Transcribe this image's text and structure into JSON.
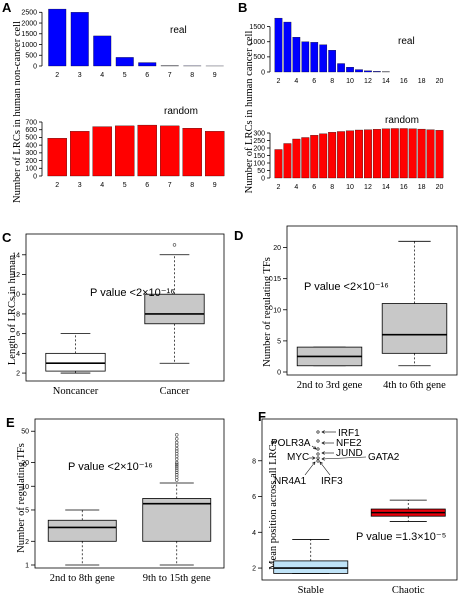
{
  "chart_data": [
    {
      "panel": "A",
      "type": "bar",
      "ylabel": "Number of LRCs in human non-cancer cell",
      "subplots": [
        {
          "label": "real",
          "color": "#0000ff",
          "categories": [
            "2",
            "3",
            "4",
            "5",
            "6",
            "7",
            "8",
            "9"
          ],
          "values": [
            2650,
            2500,
            1400,
            400,
            160,
            10,
            5,
            2
          ],
          "ylim": [
            0,
            2700
          ],
          "yticks": [
            "0",
            "500",
            "1000",
            "1500",
            "2000",
            "2500"
          ]
        },
        {
          "label": "random",
          "color": "#ff0000",
          "categories": [
            "2",
            "3",
            "4",
            "5",
            "6",
            "7",
            "8",
            "9"
          ],
          "values": [
            490,
            580,
            640,
            650,
            660,
            650,
            620,
            580
          ],
          "ylim": [
            0,
            700
          ],
          "yticks": [
            "0",
            "100",
            "200",
            "300",
            "400",
            "500",
            "600",
            "700"
          ]
        }
      ]
    },
    {
      "panel": "B",
      "type": "bar",
      "ylabel": "Number of LRCs in human cancer cell",
      "subplots": [
        {
          "label": "real",
          "color": "#0000ff",
          "categories": [
            "2",
            "3",
            "4",
            "5",
            "6",
            "7",
            "8",
            "9",
            "10",
            "11",
            "12",
            "13",
            "14",
            "15",
            "16",
            "17",
            "18",
            "19",
            "20"
          ],
          "xticks": [
            "2",
            "4",
            "6",
            "8",
            "10",
            "12",
            "14",
            "16",
            "18",
            "20"
          ],
          "values": [
            1780,
            1650,
            1150,
            1000,
            980,
            900,
            720,
            280,
            160,
            80,
            40,
            20,
            10,
            0,
            0,
            0,
            0,
            0,
            0
          ],
          "ylim": [
            0,
            1850
          ],
          "yticks": [
            "0",
            "500",
            "1000",
            "1500"
          ]
        },
        {
          "label": "random",
          "color": "#ff0000",
          "categories": [
            "2",
            "3",
            "4",
            "5",
            "6",
            "7",
            "8",
            "9",
            "10",
            "11",
            "12",
            "13",
            "14",
            "15",
            "16",
            "17",
            "18",
            "19",
            "20"
          ],
          "xticks": [
            "2",
            "4",
            "6",
            "8",
            "10",
            "12",
            "14",
            "16",
            "18",
            "20"
          ],
          "values": [
            190,
            230,
            260,
            270,
            285,
            295,
            305,
            310,
            315,
            320,
            322,
            325,
            328,
            330,
            330,
            328,
            326,
            322,
            318
          ],
          "ylim": [
            0,
            340
          ],
          "yticks": [
            "0",
            "50",
            "100",
            "150",
            "200",
            "250",
            "300"
          ]
        }
      ]
    },
    {
      "panel": "C",
      "type": "box",
      "ylabel": "Length of LRCs in human",
      "categories": [
        "Noncancer",
        "Cancer"
      ],
      "ylim": [
        1.5,
        15.5
      ],
      "yticks": [
        "2",
        "4",
        "6",
        "8",
        "10",
        "12",
        "14"
      ],
      "annotation": "P value <2×10⁻¹⁶",
      "boxes": [
        {
          "name": "Noncancer",
          "color": "#ffffff",
          "whislo": 2,
          "q1": 2.2,
          "med": 3,
          "q3": 4,
          "whishi": 6,
          "outliers": []
        },
        {
          "name": "Cancer",
          "color": "#c8c8c8",
          "whislo": 3,
          "q1": 7,
          "med": 8,
          "q3": 10,
          "whishi": 14,
          "outliers": [
            15
          ]
        }
      ]
    },
    {
      "panel": "D",
      "type": "box",
      "ylabel": "Number of regulating TFs",
      "categories": [
        "2nd to 3rd gene",
        "4th to 6th gene"
      ],
      "ylim": [
        0,
        22.5
      ],
      "yticks": [
        "0",
        "5",
        "10",
        "15",
        "20"
      ],
      "annotation": "P value <2×10⁻¹⁶",
      "boxes": [
        {
          "name": "2nd to 3rd gene",
          "color": "#c8c8c8",
          "whislo": 1,
          "q1": 1,
          "med": 2.5,
          "q3": 4,
          "whishi": 4,
          "outliers": []
        },
        {
          "name": "4th to 6th gene",
          "color": "#c8c8c8",
          "whislo": 1,
          "q1": 3,
          "med": 6,
          "q3": 11,
          "whishi": 21,
          "outliers": []
        }
      ]
    },
    {
      "panel": "E",
      "type": "box",
      "ylabel": "Number of regulating TFs",
      "yscale": "log",
      "categories": [
        "2nd to 8th gene",
        "9th to 15th gene"
      ],
      "ylim": [
        1,
        60
      ],
      "yticks": [
        "1",
        "2",
        "5",
        "10",
        "20",
        "50"
      ],
      "annotation": "P value <2×10⁻¹⁶",
      "boxes": [
        {
          "name": "2nd to 8th gene",
          "color": "#c8c8c8",
          "whislo": 1,
          "q1": 2,
          "med": 3,
          "q3": 3.7,
          "whishi": 5,
          "outliers": []
        },
        {
          "name": "9th to 15th gene",
          "color": "#c8c8c8",
          "whislo": 1,
          "q1": 2,
          "med": 6,
          "q3": 7,
          "whishi": 11,
          "outliers": [
            12,
            13,
            14,
            15,
            16,
            17,
            18,
            19,
            20,
            22,
            24,
            26,
            28,
            30,
            33,
            36,
            40,
            45
          ]
        }
      ]
    },
    {
      "panel": "F",
      "type": "box",
      "ylabel": "Mean position across all LRCs",
      "categories": [
        "Stable",
        "Chaotic"
      ],
      "ylim": [
        1.5,
        10
      ],
      "yticks": [
        "2",
        "4",
        "6",
        "8"
      ],
      "annotation": "P value =1.3×10⁻⁵",
      "boxes": [
        {
          "name": "Stable",
          "color": "#bfe3f7",
          "whislo": 1.7,
          "q1": 1.7,
          "med": 2.0,
          "q3": 2.4,
          "whishi": 3.6,
          "outliers": []
        },
        {
          "name": "Chaotic",
          "color": "#e8000b",
          "whislo": 4.6,
          "q1": 4.9,
          "med": 5.1,
          "q3": 5.3,
          "whishi": 5.8,
          "outliers": []
        }
      ],
      "gene_labels": [
        "IRF1",
        "NFE2",
        "POLR3A",
        "JUND",
        "MYC",
        "GATA2",
        "NR4A1",
        "IRF3"
      ]
    }
  ]
}
